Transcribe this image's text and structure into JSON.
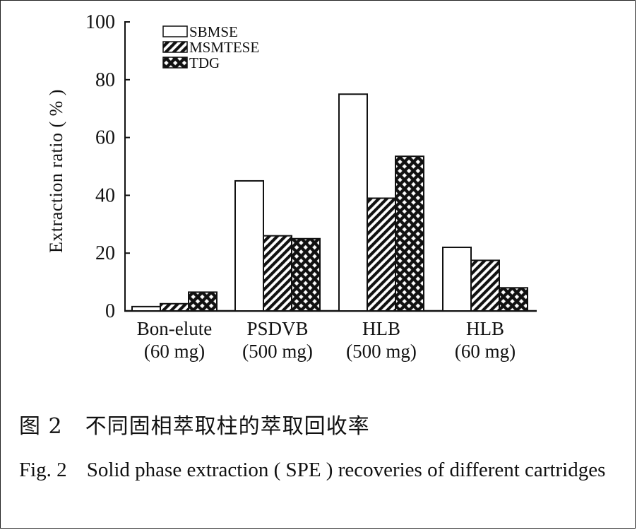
{
  "chart_data": {
    "type": "bar",
    "categories": [
      [
        "Bon-elute",
        "(60 mg)"
      ],
      [
        "PSDVB",
        "(500 mg)"
      ],
      [
        "HLB",
        "(500 mg)"
      ],
      [
        "HLB",
        "(60 mg)"
      ]
    ],
    "series": [
      {
        "name": "SBMSE",
        "values": [
          1.5,
          45,
          75,
          22
        ],
        "pattern": "white"
      },
      {
        "name": "MSMTESE",
        "values": [
          2.5,
          26,
          39,
          17.5
        ],
        "pattern": "diagonal-hatch"
      },
      {
        "name": "TDG",
        "values": [
          6.5,
          25,
          53.5,
          8
        ],
        "pattern": "crosshatch"
      }
    ],
    "ylabel": "Extraction ratio ( % )",
    "ylim": [
      0,
      100
    ],
    "yticks": [
      0,
      20,
      40,
      60,
      80,
      100
    ],
    "grid": false,
    "legend_position": "top-left"
  },
  "caption": {
    "cn_number": "图 2",
    "cn_text": "不同固相萃取柱的萃取回收率",
    "en_number": "Fig. 2",
    "en_text": "Solid phase extraction ( SPE ) recoveries of different cartridges"
  }
}
